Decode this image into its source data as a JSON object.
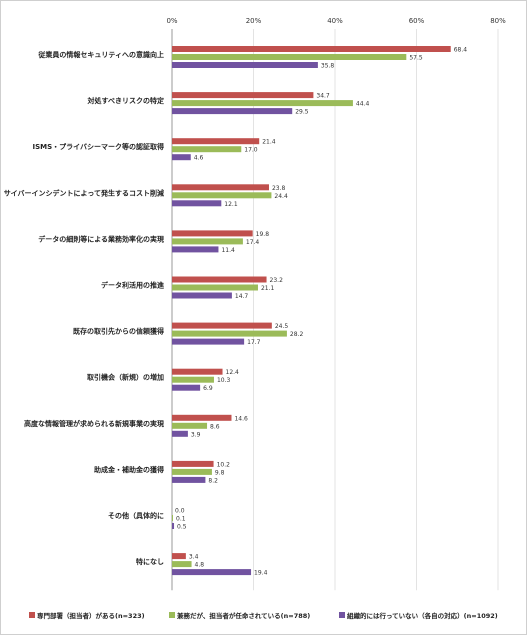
{
  "chart_data": {
    "type": "bar",
    "orientation": "horizontal",
    "categories": [
      "従業員の情報セキュリティへの意識向上",
      "対処すべきリスクの特定",
      "ISMS・プライバシーマーク等の認証取得",
      "サイバーインシデントによって発生するコスト削減",
      "データの細則等による業務効率化の実現",
      "データ利活用の推進",
      "既存の取引先からの信頼獲得",
      "取引機会（新規）の増加",
      "高度な情報管理が求められる新規事業の実現",
      "助成金・補助金の獲得",
      "その他（具体的に",
      "特になし"
    ],
    "series": [
      {
        "name": "専門部署（担当者）がある(n=323)",
        "color": "#c0504d",
        "values": [
          68.4,
          34.7,
          21.4,
          23.8,
          19.8,
          23.2,
          24.5,
          12.4,
          14.6,
          10.2,
          0.0,
          3.4
        ]
      },
      {
        "name": "兼務だが、担当者が任命されている(n=788)",
        "color": "#9bbb59",
        "values": [
          57.5,
          44.4,
          17.0,
          24.4,
          17.4,
          21.1,
          28.2,
          10.3,
          8.6,
          9.8,
          0.1,
          4.8
        ]
      },
      {
        "name": "組織的には行っていない（各自の対応）(n=1092)",
        "color": "#7153a0",
        "values": [
          35.8,
          29.5,
          4.6,
          12.1,
          11.4,
          14.7,
          17.7,
          6.9,
          3.9,
          8.2,
          0.5,
          19.4
        ]
      }
    ],
    "value_labels": [
      [
        "68.4",
        "34.7",
        "21.4",
        "23.8",
        "19.8",
        "23.2",
        "24.5",
        "12.4",
        "14.6",
        "10.2",
        "0.0",
        "3.4"
      ],
      [
        "57.5",
        "44.4",
        "17.0",
        "24.4",
        "17.4",
        "21.1",
        "28.2",
        "10.3",
        "8.6",
        "9.8",
        "0.1",
        "4.8"
      ],
      [
        "35.8",
        "29.5",
        "4.6",
        "12.1",
        "11.4",
        "14.7",
        "17.7",
        "6.9",
        "3.9",
        "8.2",
        "0.5",
        "19.4"
      ]
    ],
    "xlim": [
      0,
      80
    ],
    "xticks": [
      "0%",
      "20%",
      "40%",
      "60%",
      "80%"
    ],
    "grid": true,
    "legend_position": "bottom"
  }
}
